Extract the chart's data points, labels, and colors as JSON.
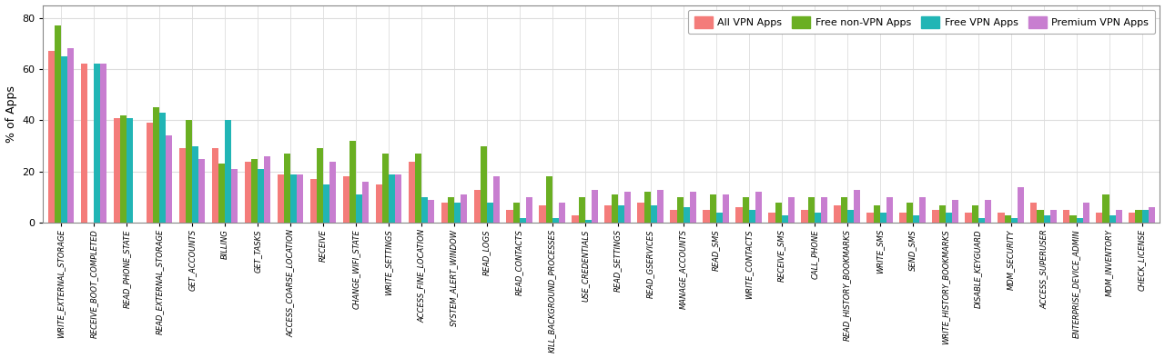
{
  "categories": [
    "WRITE_EXTERNAL_STORAGE",
    "RECEIVE_BOOT_COMPLETED",
    "READ_PHONE_STATE",
    "READ_EXTERNAL_STORAGE",
    "GET_ACCOUNTS",
    "BILLING",
    "GET_TASKS",
    "ACCESS_COARSE_LOCATION",
    "RECEIVE",
    "CHANGE_WIFI_STATE",
    "WRITE_SETTINGS",
    "ACCESS_FINE_LOCATION",
    "SYSTEM_ALERT_WINDOW",
    "READ_LOGS",
    "READ_CONTACTS",
    "KILL_BACKGROUND_PROCESSES",
    "USE_CREDENTIALS",
    "READ_SETTINGS",
    "READ_GSERVICES",
    "MANAGE_ACCOUNTS",
    "READ_SMS",
    "WRITE_CONTACTS",
    "RECEIVE_SMS",
    "CALL_PHONE",
    "READ_HISTORY_BOOKMARKS",
    "WRITE_SMS",
    "SEND_SMS",
    "WRITE_HISTORY_BOOKMARKS",
    "DISABLE_KEYGUARD",
    "MDM_SECURITY",
    "ACCESS_SUPERUSER",
    "ENTERPRISE_DEVICE_ADMIN",
    "MDM_INVENTORY",
    "CHECK_LICENSE"
  ],
  "series": {
    "All VPN Apps": [
      67,
      62,
      41,
      39,
      29,
      29,
      24,
      19,
      17,
      18,
      15,
      24,
      8,
      13,
      5,
      7,
      3,
      7,
      8,
      5,
      5,
      6,
      4,
      5,
      7,
      4,
      4,
      5,
      4,
      4,
      8,
      5,
      4,
      4
    ],
    "Free non-VPN Apps": [
      77,
      0,
      42,
      45,
      40,
      23,
      25,
      27,
      29,
      32,
      27,
      27,
      10,
      30,
      8,
      18,
      10,
      11,
      12,
      10,
      11,
      10,
      8,
      10,
      10,
      7,
      8,
      7,
      7,
      3,
      5,
      3,
      11,
      5
    ],
    "Free VPN Apps": [
      65,
      62,
      41,
      43,
      30,
      40,
      21,
      19,
      15,
      11,
      19,
      10,
      8,
      8,
      2,
      2,
      1,
      7,
      7,
      6,
      4,
      5,
      3,
      4,
      5,
      4,
      3,
      4,
      2,
      2,
      3,
      2,
      3,
      5
    ],
    "Premium VPN Apps": [
      68,
      62,
      0,
      34,
      25,
      21,
      26,
      19,
      24,
      16,
      19,
      9,
      11,
      18,
      10,
      8,
      13,
      12,
      13,
      12,
      11,
      12,
      10,
      10,
      13,
      10,
      10,
      9,
      9,
      14,
      5,
      8,
      5,
      6
    ]
  },
  "colors": {
    "All VPN Apps": "#F47C7A",
    "Free non-VPN Apps": "#6AAF22",
    "Free VPN Apps": "#21B5B5",
    "Premium VPN Apps": "#C87ED0"
  },
  "ylabel": "% of Apps",
  "ylim": [
    0,
    85
  ],
  "yticks": [
    0,
    20,
    40,
    60,
    80
  ],
  "background_color": "#FFFFFF",
  "grid_color": "#DDDDDD",
  "bar_width": 0.2
}
